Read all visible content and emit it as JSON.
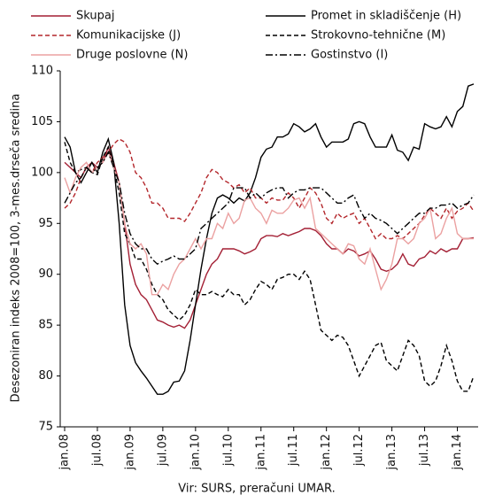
{
  "chart_data": {
    "type": "line",
    "y_label": "Desezoniran indeks 2008=100, 3-mes.drseča sredina",
    "source": "Vir: SURS, preračuni UMAR.",
    "categories": [
      "jan.08",
      null,
      null,
      null,
      null,
      null,
      "jul.08",
      null,
      null,
      null,
      null,
      null,
      "jan.09",
      null,
      null,
      null,
      null,
      null,
      "jul.09",
      null,
      null,
      null,
      null,
      null,
      "jan.10",
      null,
      null,
      null,
      null,
      null,
      "jul.10",
      null,
      null,
      null,
      null,
      null,
      "jan.11",
      null,
      null,
      null,
      null,
      null,
      "jul.11",
      null,
      null,
      null,
      null,
      null,
      "jan.12",
      null,
      null,
      null,
      null,
      null,
      "jul.12",
      null,
      null,
      null,
      null,
      null,
      "jan.13",
      null,
      null,
      null,
      null,
      null,
      "jul.13",
      null,
      null,
      null,
      null,
      null,
      "jan.14",
      null,
      null,
      null
    ],
    "ylim": [
      75,
      110
    ],
    "yticks": [
      75,
      80,
      85,
      90,
      95,
      100,
      105,
      110
    ],
    "series": [
      {
        "name": "Skupaj",
        "color": "#a31f34",
        "dash": "solid",
        "values": [
          101,
          100.5,
          100,
          99.5,
          100.5,
          101,
          100.5,
          101,
          102.5,
          101,
          99,
          95,
          91,
          89,
          88,
          87.5,
          86.5,
          85.5,
          85.3,
          85,
          84.8,
          85,
          84.7,
          85.5,
          87,
          88.5,
          90,
          91,
          91.5,
          92.5,
          92.5,
          92.5,
          92.3,
          92,
          92.2,
          92.5,
          93.5,
          93.8,
          93.8,
          93.7,
          94,
          93.8,
          94,
          94.2,
          94.5,
          94.5,
          94.3,
          93.8,
          93,
          92.5,
          92.5,
          92,
          92.5,
          92.3,
          91.8,
          92,
          92.3,
          91.5,
          90.5,
          90.3,
          90.5,
          91,
          92,
          91,
          90.8,
          91.5,
          91.7,
          92.3,
          92,
          92.5,
          92.2,
          92.5,
          92.5,
          93.5,
          93.5,
          93.6
        ]
      },
      {
        "name": "Promet in skladiščenje (H)",
        "color": "#000000",
        "dash": "solid",
        "values": [
          103.5,
          102.5,
          100,
          99,
          100,
          101,
          100,
          102,
          103.3,
          101,
          95,
          87,
          83,
          81.3,
          80.5,
          79.8,
          79,
          78.2,
          78.2,
          78.5,
          79.4,
          79.5,
          80.5,
          83.5,
          87,
          90.5,
          93.5,
          96,
          97.5,
          97.8,
          97.5,
          97,
          97.5,
          97.2,
          98,
          99.5,
          101.5,
          102.3,
          102.5,
          103.5,
          103.5,
          103.8,
          104.8,
          104.5,
          104,
          104.3,
          104.8,
          103.5,
          102.5,
          103,
          103,
          103,
          103.3,
          104.8,
          105,
          104.8,
          103.5,
          102.5,
          102.5,
          102.5,
          103.7,
          102.2,
          102,
          101.2,
          102.5,
          102.3,
          104.8,
          104.5,
          104.3,
          104.5,
          105.5,
          104.5,
          106,
          106.5,
          108.5,
          108.7
        ]
      },
      {
        "name": "Komunikacijske (J)",
        "color": "#b3262b",
        "dash": "dashed",
        "values": [
          96.5,
          97,
          98,
          99.5,
          100.5,
          100,
          101,
          101.5,
          102,
          102.8,
          103.3,
          103,
          102,
          100,
          99.5,
          98.5,
          97,
          97,
          96.5,
          95.5,
          95.5,
          95.5,
          95.2,
          96,
          97,
          98,
          99.5,
          100.3,
          100,
          99.3,
          99,
          98.5,
          98.8,
          98,
          98.5,
          97.5,
          97.5,
          97,
          97.5,
          97.3,
          97.3,
          98,
          97.5,
          96.5,
          97.5,
          98.5,
          98,
          97,
          95.5,
          95,
          96,
          95.5,
          95.8,
          96,
          95,
          95.5,
          94.5,
          93.5,
          94,
          93.5,
          93.5,
          93.8,
          93.5,
          94,
          94.5,
          95,
          95.8,
          96.5,
          96,
          95.5,
          96.5,
          95.5,
          96.2,
          96.5,
          97,
          96.2
        ]
      },
      {
        "name": "Strokovno-tehnične (M)",
        "color": "#000000",
        "dash": "dashed",
        "values": [
          103,
          101,
          100,
          100.3,
          100.5,
          100,
          99.8,
          101.5,
          102.5,
          100.5,
          98,
          94,
          93,
          91.5,
          91.5,
          90.5,
          89,
          88,
          87.5,
          86.5,
          86,
          85.5,
          86,
          87,
          88.5,
          88,
          88,
          88.3,
          88,
          87.8,
          88.5,
          88,
          88,
          87,
          87.5,
          88.5,
          89.3,
          89,
          88.5,
          89.5,
          89.7,
          90,
          90,
          89.5,
          90.3,
          89.5,
          87,
          84.5,
          84,
          83.5,
          84,
          83.8,
          83,
          81.5,
          80,
          81,
          82,
          83,
          83.3,
          81.5,
          81,
          80.5,
          82,
          83.5,
          83,
          82,
          79.5,
          79,
          79.5,
          81,
          83,
          81.5,
          79.5,
          78.5,
          78.5,
          80
        ]
      },
      {
        "name": "Druge poslovne (N)",
        "color": "#eba1a1",
        "dash": "solid",
        "values": [
          99.5,
          98,
          99.5,
          100.5,
          101,
          100,
          100.5,
          101,
          102,
          100.5,
          99,
          95,
          93,
          92.5,
          93,
          92,
          88,
          88,
          89,
          88.5,
          90,
          91,
          91.5,
          92.5,
          93.5,
          92.5,
          93.5,
          93.5,
          95,
          94.5,
          96,
          95,
          95.5,
          97.3,
          97.5,
          96.5,
          96,
          95,
          96.3,
          96,
          96,
          96.5,
          97.3,
          97.5,
          96.5,
          97.5,
          94.5,
          94,
          93.5,
          93,
          92.5,
          92,
          93,
          92.8,
          91.5,
          91,
          92.5,
          90.5,
          88.5,
          89.5,
          91,
          93.5,
          93.5,
          93,
          93.5,
          95,
          95.5,
          96.5,
          93.5,
          94,
          95.5,
          96.5,
          94,
          93.5,
          93.5,
          93.5
        ]
      },
      {
        "name": "Gostinstvo (I)",
        "color": "#000000",
        "dash": "dashdot",
        "values": [
          97,
          98,
          99,
          99.5,
          100.5,
          100,
          100.5,
          101,
          102,
          100.5,
          99,
          96,
          94,
          93,
          92.5,
          92.5,
          91.5,
          91,
          91.3,
          91.5,
          91.8,
          91.5,
          91.5,
          92,
          92.5,
          94.5,
          95,
          95.5,
          96,
          96.5,
          97,
          98.5,
          98.5,
          98.5,
          97.5,
          98,
          97.5,
          98,
          98.3,
          98.5,
          98.5,
          97.5,
          98,
          98.3,
          98.3,
          98.5,
          98.5,
          98.5,
          98,
          97.5,
          97,
          97,
          97.5,
          97.8,
          96.5,
          95.5,
          96,
          95.5,
          95.3,
          95,
          94.5,
          94,
          94.5,
          95,
          95.5,
          96,
          96,
          96.5,
          96.5,
          96.8,
          96.8,
          97,
          96.5,
          96.8,
          97,
          97.8
        ]
      }
    ]
  }
}
